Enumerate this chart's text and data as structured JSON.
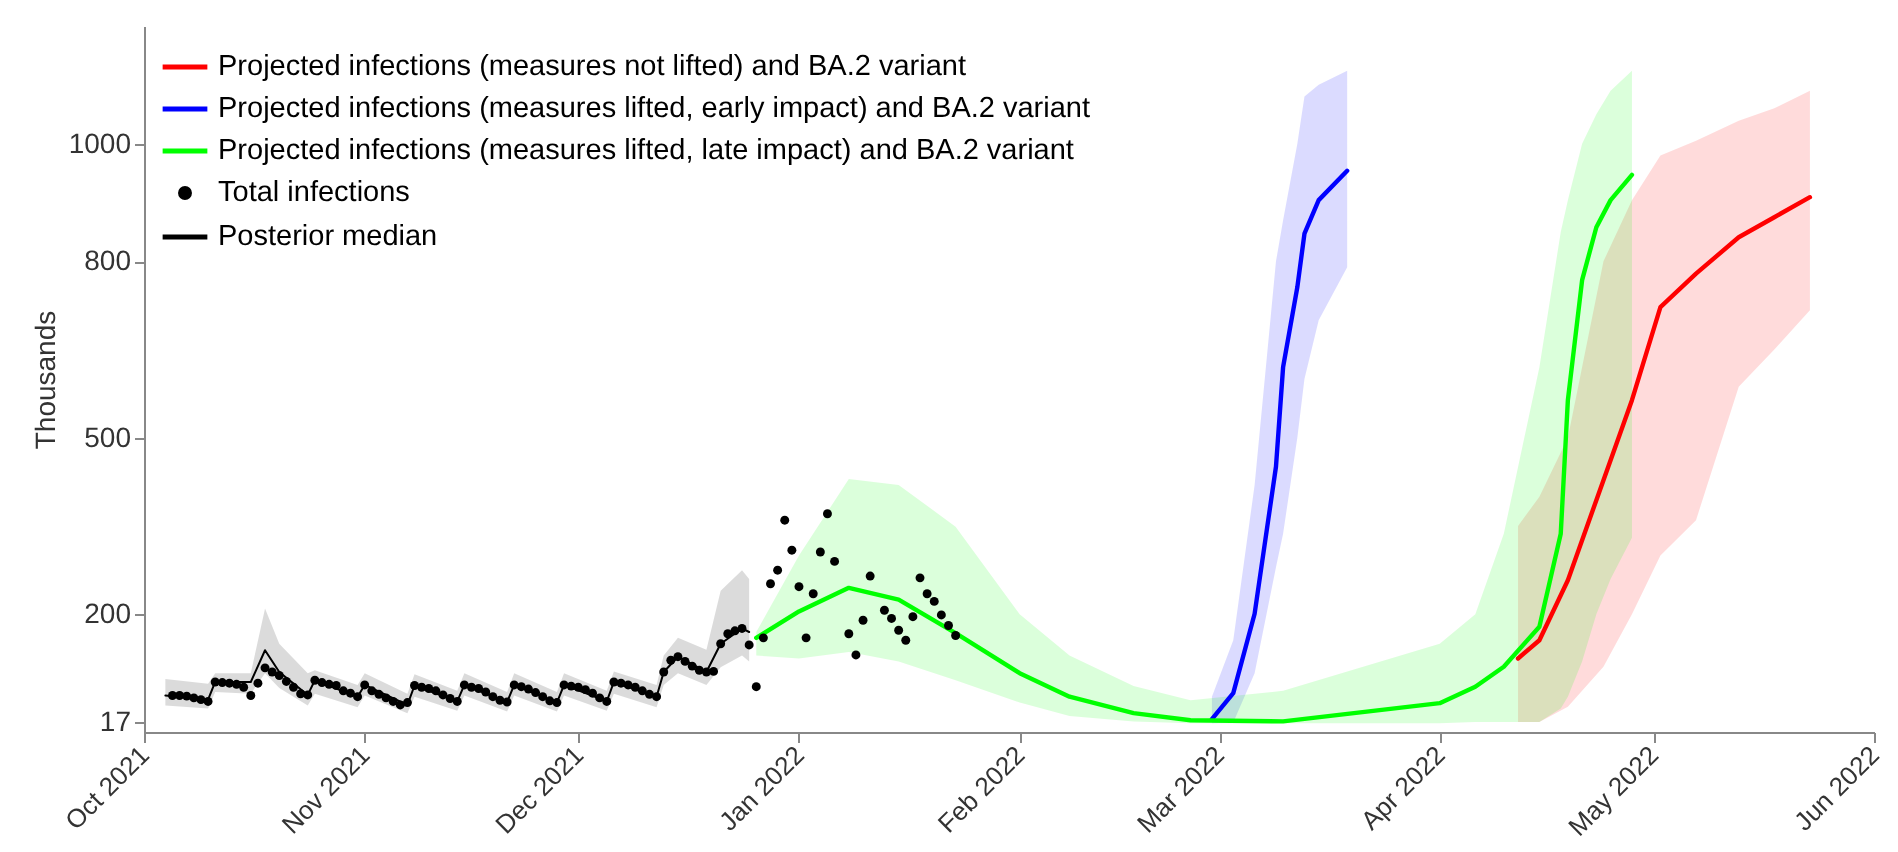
{
  "chart_data": {
    "type": "line",
    "ylabel": "Thousands",
    "legend": "top left",
    "xlim": [
      "2021-10-01",
      "2022-06-01"
    ],
    "xticks": [
      {
        "value": "2021-10-01",
        "label": "Oct 2021"
      },
      {
        "value": "2021-11-01",
        "label": "Nov 2021"
      },
      {
        "value": "2021-12-01",
        "label": "Dec 2021"
      },
      {
        "value": "2022-01-01",
        "label": "Jan 2022"
      },
      {
        "value": "2022-02-01",
        "label": "Feb 2022"
      },
      {
        "value": "2022-03-01",
        "label": "Mar 2022"
      },
      {
        "value": "2022-04-01",
        "label": "Apr 2022"
      },
      {
        "value": "2022-05-01",
        "label": "May 2022"
      },
      {
        "value": "2022-06-01",
        "label": "Jun 2022"
      }
    ],
    "ylim": [
      0,
      1200
    ],
    "yticks": [
      17,
      200,
      500,
      800,
      1000
    ],
    "series": [
      {
        "name": "Projected infections (measures not lifted) and BA.2 variant",
        "color": "#ff0000",
        "x": [
          "2022-04-12",
          "2022-04-15",
          "2022-04-19",
          "2022-04-24",
          "2022-04-28",
          "2022-05-02",
          "2022-05-07",
          "2022-05-13",
          "2022-05-18",
          "2022-05-23"
        ],
        "values": [
          125,
          156,
          258,
          428,
          564,
          722,
          779,
          841,
          875,
          909
        ],
        "lower": [
          17,
          17,
          43,
          111,
          200,
          300,
          360,
          587,
          650,
          717
        ],
        "upper": [
          350,
          400,
          500,
          800,
          904,
          980,
          1005,
          1039,
          1060,
          1090
        ]
      },
      {
        "name": "Projected infections (measures lifted, early impact) and BA.2 variant",
        "color": "#0000ff",
        "x": [
          "2022-02-28",
          "2022-03-03",
          "2022-03-06",
          "2022-03-09",
          "2022-03-10",
          "2022-03-12",
          "2022-03-13",
          "2022-03-15",
          "2022-03-19"
        ],
        "values": [
          22,
          66,
          201,
          451,
          620,
          756,
          847,
          904,
          954
        ],
        "lower": [
          15,
          16,
          100,
          280,
          337,
          500,
          600,
          700,
          790
        ],
        "upper": [
          60,
          156,
          420,
          800,
          870,
          1000,
          1080,
          1100,
          1124
        ]
      },
      {
        "name": "Projected infections (measures lifted, late impact) and BA.2 variant",
        "color": "#00ff00",
        "x": [
          "2021-12-26",
          "2022-01-01",
          "2022-01-08",
          "2022-01-15",
          "2022-01-23",
          "2022-02-01",
          "2022-02-08",
          "2022-02-17",
          "2022-02-25",
          "2022-03-10",
          "2022-04-01",
          "2022-04-06",
          "2022-04-10",
          "2022-04-15",
          "2022-04-18",
          "2022-04-19",
          "2022-04-21",
          "2022-04-23",
          "2022-04-25",
          "2022-04-28"
        ],
        "values": [
          160,
          205,
          245,
          225,
          168,
          100,
          60,
          32,
          20,
          18,
          49,
          77,
          111,
          179,
          337,
          564,
          768,
          858,
          904,
          947
        ],
        "lower": [
          130,
          125,
          136,
          120,
          88,
          50,
          27,
          18,
          15,
          15,
          15,
          17,
          17,
          17,
          40,
          60,
          120,
          200,
          260,
          330
        ],
        "upper": [
          170,
          300,
          430,
          420,
          349,
          200,
          130,
          78,
          54,
          70,
          150,
          200,
          337,
          620,
          850,
          904,
          1000,
          1050,
          1090,
          1124
        ]
      },
      {
        "name": "Total infections",
        "color": "#000000",
        "type": "scatter",
        "x": [
          "2021-10-05",
          "2021-10-06",
          "2021-10-07",
          "2021-10-08",
          "2021-10-09",
          "2021-10-10",
          "2021-10-11",
          "2021-10-12",
          "2021-10-13",
          "2021-10-14",
          "2021-10-15",
          "2021-10-16",
          "2021-10-17",
          "2021-10-18",
          "2021-10-19",
          "2021-10-20",
          "2021-10-21",
          "2021-10-22",
          "2021-10-23",
          "2021-10-24",
          "2021-10-25",
          "2021-10-26",
          "2021-10-27",
          "2021-10-28",
          "2021-10-29",
          "2021-10-30",
          "2021-10-31",
          "2021-11-01",
          "2021-11-02",
          "2021-11-03",
          "2021-11-04",
          "2021-11-05",
          "2021-11-06",
          "2021-11-07",
          "2021-11-08",
          "2021-11-09",
          "2021-11-10",
          "2021-11-11",
          "2021-11-12",
          "2021-11-13",
          "2021-11-14",
          "2021-11-15",
          "2021-11-16",
          "2021-11-17",
          "2021-11-18",
          "2021-11-19",
          "2021-11-20",
          "2021-11-21",
          "2021-11-22",
          "2021-11-23",
          "2021-11-24",
          "2021-11-25",
          "2021-11-26",
          "2021-11-27",
          "2021-11-28",
          "2021-11-29",
          "2021-11-30",
          "2021-12-01",
          "2021-12-02",
          "2021-12-03",
          "2021-12-04",
          "2021-12-05",
          "2021-12-06",
          "2021-12-07",
          "2021-12-08",
          "2021-12-09",
          "2021-12-10",
          "2021-12-11",
          "2021-12-12",
          "2021-12-13",
          "2021-12-14",
          "2021-12-15",
          "2021-12-16",
          "2021-12-17",
          "2021-12-18",
          "2021-12-19",
          "2021-12-20",
          "2021-12-21",
          "2021-12-22",
          "2021-12-23",
          "2021-12-24",
          "2021-12-25",
          "2021-12-26",
          "2021-12-27",
          "2021-12-28",
          "2021-12-29",
          "2021-12-30",
          "2021-12-31",
          "2022-01-01",
          "2022-01-02",
          "2022-01-03",
          "2022-01-04",
          "2022-01-05",
          "2022-01-06",
          "2022-01-08",
          "2022-01-09",
          "2022-01-10",
          "2022-01-11",
          "2022-01-13",
          "2022-01-14",
          "2022-01-15",
          "2022-01-16",
          "2022-01-17",
          "2022-01-18",
          "2022-01-19",
          "2022-01-20",
          "2022-01-21",
          "2022-01-22",
          "2022-01-23"
        ],
        "values": [
          62,
          62,
          61,
          58,
          55,
          52,
          85,
          84,
          83,
          81,
          76,
          62,
          83,
          109,
          102,
          96,
          86,
          76,
          65,
          63,
          88,
          84,
          81,
          79,
          70,
          66,
          60,
          80,
          70,
          64,
          58,
          52,
          46,
          50,
          79,
          76,
          74,
          70,
          63,
          57,
          52,
          80,
          76,
          74,
          68,
          60,
          54,
          51,
          80,
          77,
          73,
          67,
          60,
          53,
          50,
          80,
          78,
          76,
          72,
          66,
          58,
          52,
          85,
          83,
          80,
          76,
          70,
          64,
          60,
          102,
          122,
          128,
          120,
          112,
          105,
          102,
          103,
          150,
          167,
          172,
          176,
          148,
          77,
          160,
          252,
          275,
          360,
          309,
          247,
          160,
          235,
          306,
          371,
          290,
          167,
          131,
          190,
          265,
          207,
          193,
          173,
          156,
          196,
          262,
          235,
          222,
          199,
          181,
          164
        ]
      },
      {
        "name": "Posterior median",
        "color": "#000000",
        "x": [
          "2021-10-04",
          "2021-10-10",
          "2021-10-11",
          "2021-10-16",
          "2021-10-18",
          "2021-10-20",
          "2021-10-24",
          "2021-10-25",
          "2021-10-31",
          "2021-11-01",
          "2021-11-07",
          "2021-11-08",
          "2021-11-14",
          "2021-11-15",
          "2021-11-21",
          "2021-11-22",
          "2021-11-28",
          "2021-11-29",
          "2021-12-05",
          "2021-12-06",
          "2021-12-12",
          "2021-12-13",
          "2021-12-15",
          "2021-12-19",
          "2021-12-21",
          "2021-12-24",
          "2021-12-25"
        ],
        "values": [
          62,
          55,
          85,
          85,
          139,
          102,
          63,
          88,
          60,
          80,
          46,
          79,
          52,
          80,
          51,
          80,
          50,
          80,
          52,
          85,
          60,
          102,
          128,
          102,
          150,
          176,
          170
        ],
        "lower": [
          45,
          40,
          68,
          65,
          100,
          75,
          45,
          65,
          42,
          62,
          32,
          60,
          36,
          62,
          35,
          62,
          35,
          62,
          36,
          65,
          42,
          80,
          100,
          80,
          110,
          130,
          120
        ],
        "upper": [
          90,
          82,
          100,
          100,
          210,
          150,
          100,
          105,
          80,
          100,
          65,
          98,
          70,
          100,
          68,
          100,
          68,
          100,
          70,
          103,
          80,
          130,
          160,
          140,
          240,
          275,
          260
        ]
      }
    ]
  }
}
